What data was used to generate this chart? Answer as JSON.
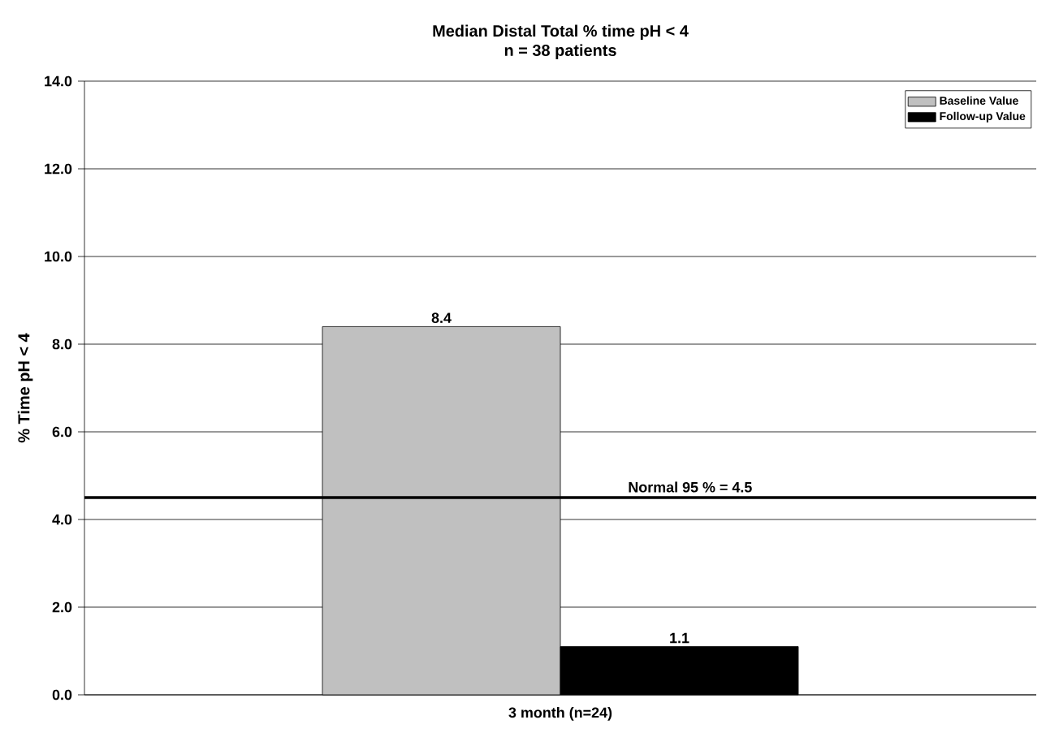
{
  "chart_data": {
    "type": "bar",
    "title": "Median Distal Total % time pH < 4",
    "subtitle": "n = 38 patients",
    "ylabel": "% Time pH < 4",
    "categories": [
      "3 month (n=24)"
    ],
    "series": [
      {
        "name": "Baseline Value",
        "color": "#c0c0c0",
        "values": [
          8.4
        ]
      },
      {
        "name": "Follow-up Value",
        "color": "#000000",
        "values": [
          1.1
        ]
      }
    ],
    "ylim": [
      0,
      14
    ],
    "yticks": [
      {
        "value": 0,
        "label": "0.0"
      },
      {
        "value": 2,
        "label": "2.0"
      },
      {
        "value": 4,
        "label": "4.0"
      },
      {
        "value": 6,
        "label": "6.0"
      },
      {
        "value": 8,
        "label": "8.0"
      },
      {
        "value": 10,
        "label": "10.0"
      },
      {
        "value": 12,
        "label": "12.0"
      },
      {
        "value": 14,
        "label": "14.0"
      }
    ],
    "ref_lines": [
      {
        "axis": "y",
        "value": 4.5,
        "label": "Normal  95 % = 4.5",
        "color": "#000000"
      }
    ],
    "data_labels": true,
    "grid": "y",
    "legend": "top right"
  }
}
